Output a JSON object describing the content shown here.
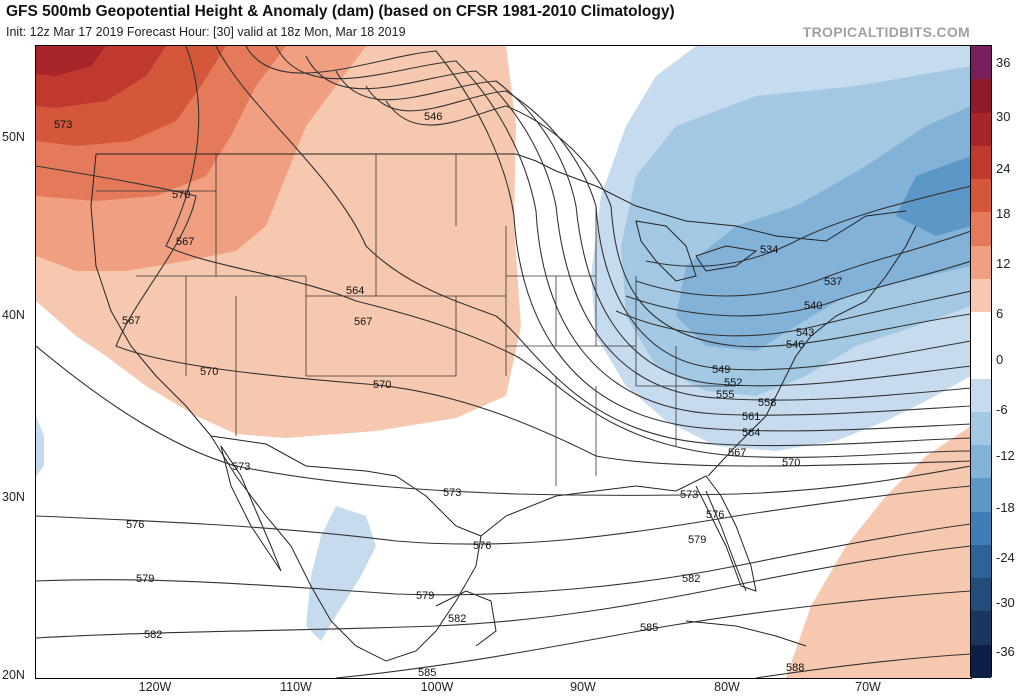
{
  "header": {
    "title": "GFS 500mb Geopotential Height & Anomaly (dam) (based on CFSR 1981-2010 Climatology)",
    "subtitle": "Init: 12z Mar 17 2019   Forecast Hour: [30]   valid at 18z Mon, Mar 18 2019",
    "credit": "TROPICALTIDBITS.COM"
  },
  "axes": {
    "lat_labels": [
      "50N",
      "40N",
      "30N",
      "20N"
    ],
    "lon_labels": [
      "120W",
      "110W",
      "100W",
      "90W",
      "80W",
      "70W"
    ]
  },
  "colorbar": {
    "labels": [
      "36",
      "30",
      "24",
      "18",
      "12",
      "6",
      "0",
      "-6",
      "-12",
      "-18",
      "-24",
      "-30",
      "-36"
    ],
    "colors": [
      "#7a1f5e",
      "#8e1b2c",
      "#a8262b",
      "#c0392f",
      "#d4573c",
      "#e57a5a",
      "#f0a080",
      "#f7c8b0",
      "#ffffff",
      "#ffffff",
      "#c6dcee",
      "#a3c8e3",
      "#82b2d8",
      "#5c97c8",
      "#3f7db6",
      "#2e6399",
      "#244c7a",
      "#1a3560",
      "#0e1f45"
    ]
  },
  "contour_labels": {
    "c534": "534",
    "c537": "537",
    "c540": "540",
    "c543": "543",
    "c546a": "546",
    "c546b": "546",
    "c549": "549",
    "c552": "552",
    "c555": "555",
    "c558": "558",
    "c561": "561",
    "c564a": "564",
    "c564b": "564",
    "c567a": "567",
    "c567b": "567",
    "c567c": "567",
    "c567d": "567",
    "c570a": "570",
    "c570b": "570",
    "c570c": "570",
    "c570d": "570",
    "c573a": "573",
    "c573b": "573",
    "c573c": "573",
    "c573d": "573",
    "c576a": "576",
    "c576b": "576",
    "c576c": "576",
    "c579a": "579",
    "c579b": "579",
    "c579c": "579",
    "c582a": "582",
    "c582b": "582",
    "c582c": "582",
    "c585a": "585",
    "c585b": "585",
    "c588": "588"
  }
}
